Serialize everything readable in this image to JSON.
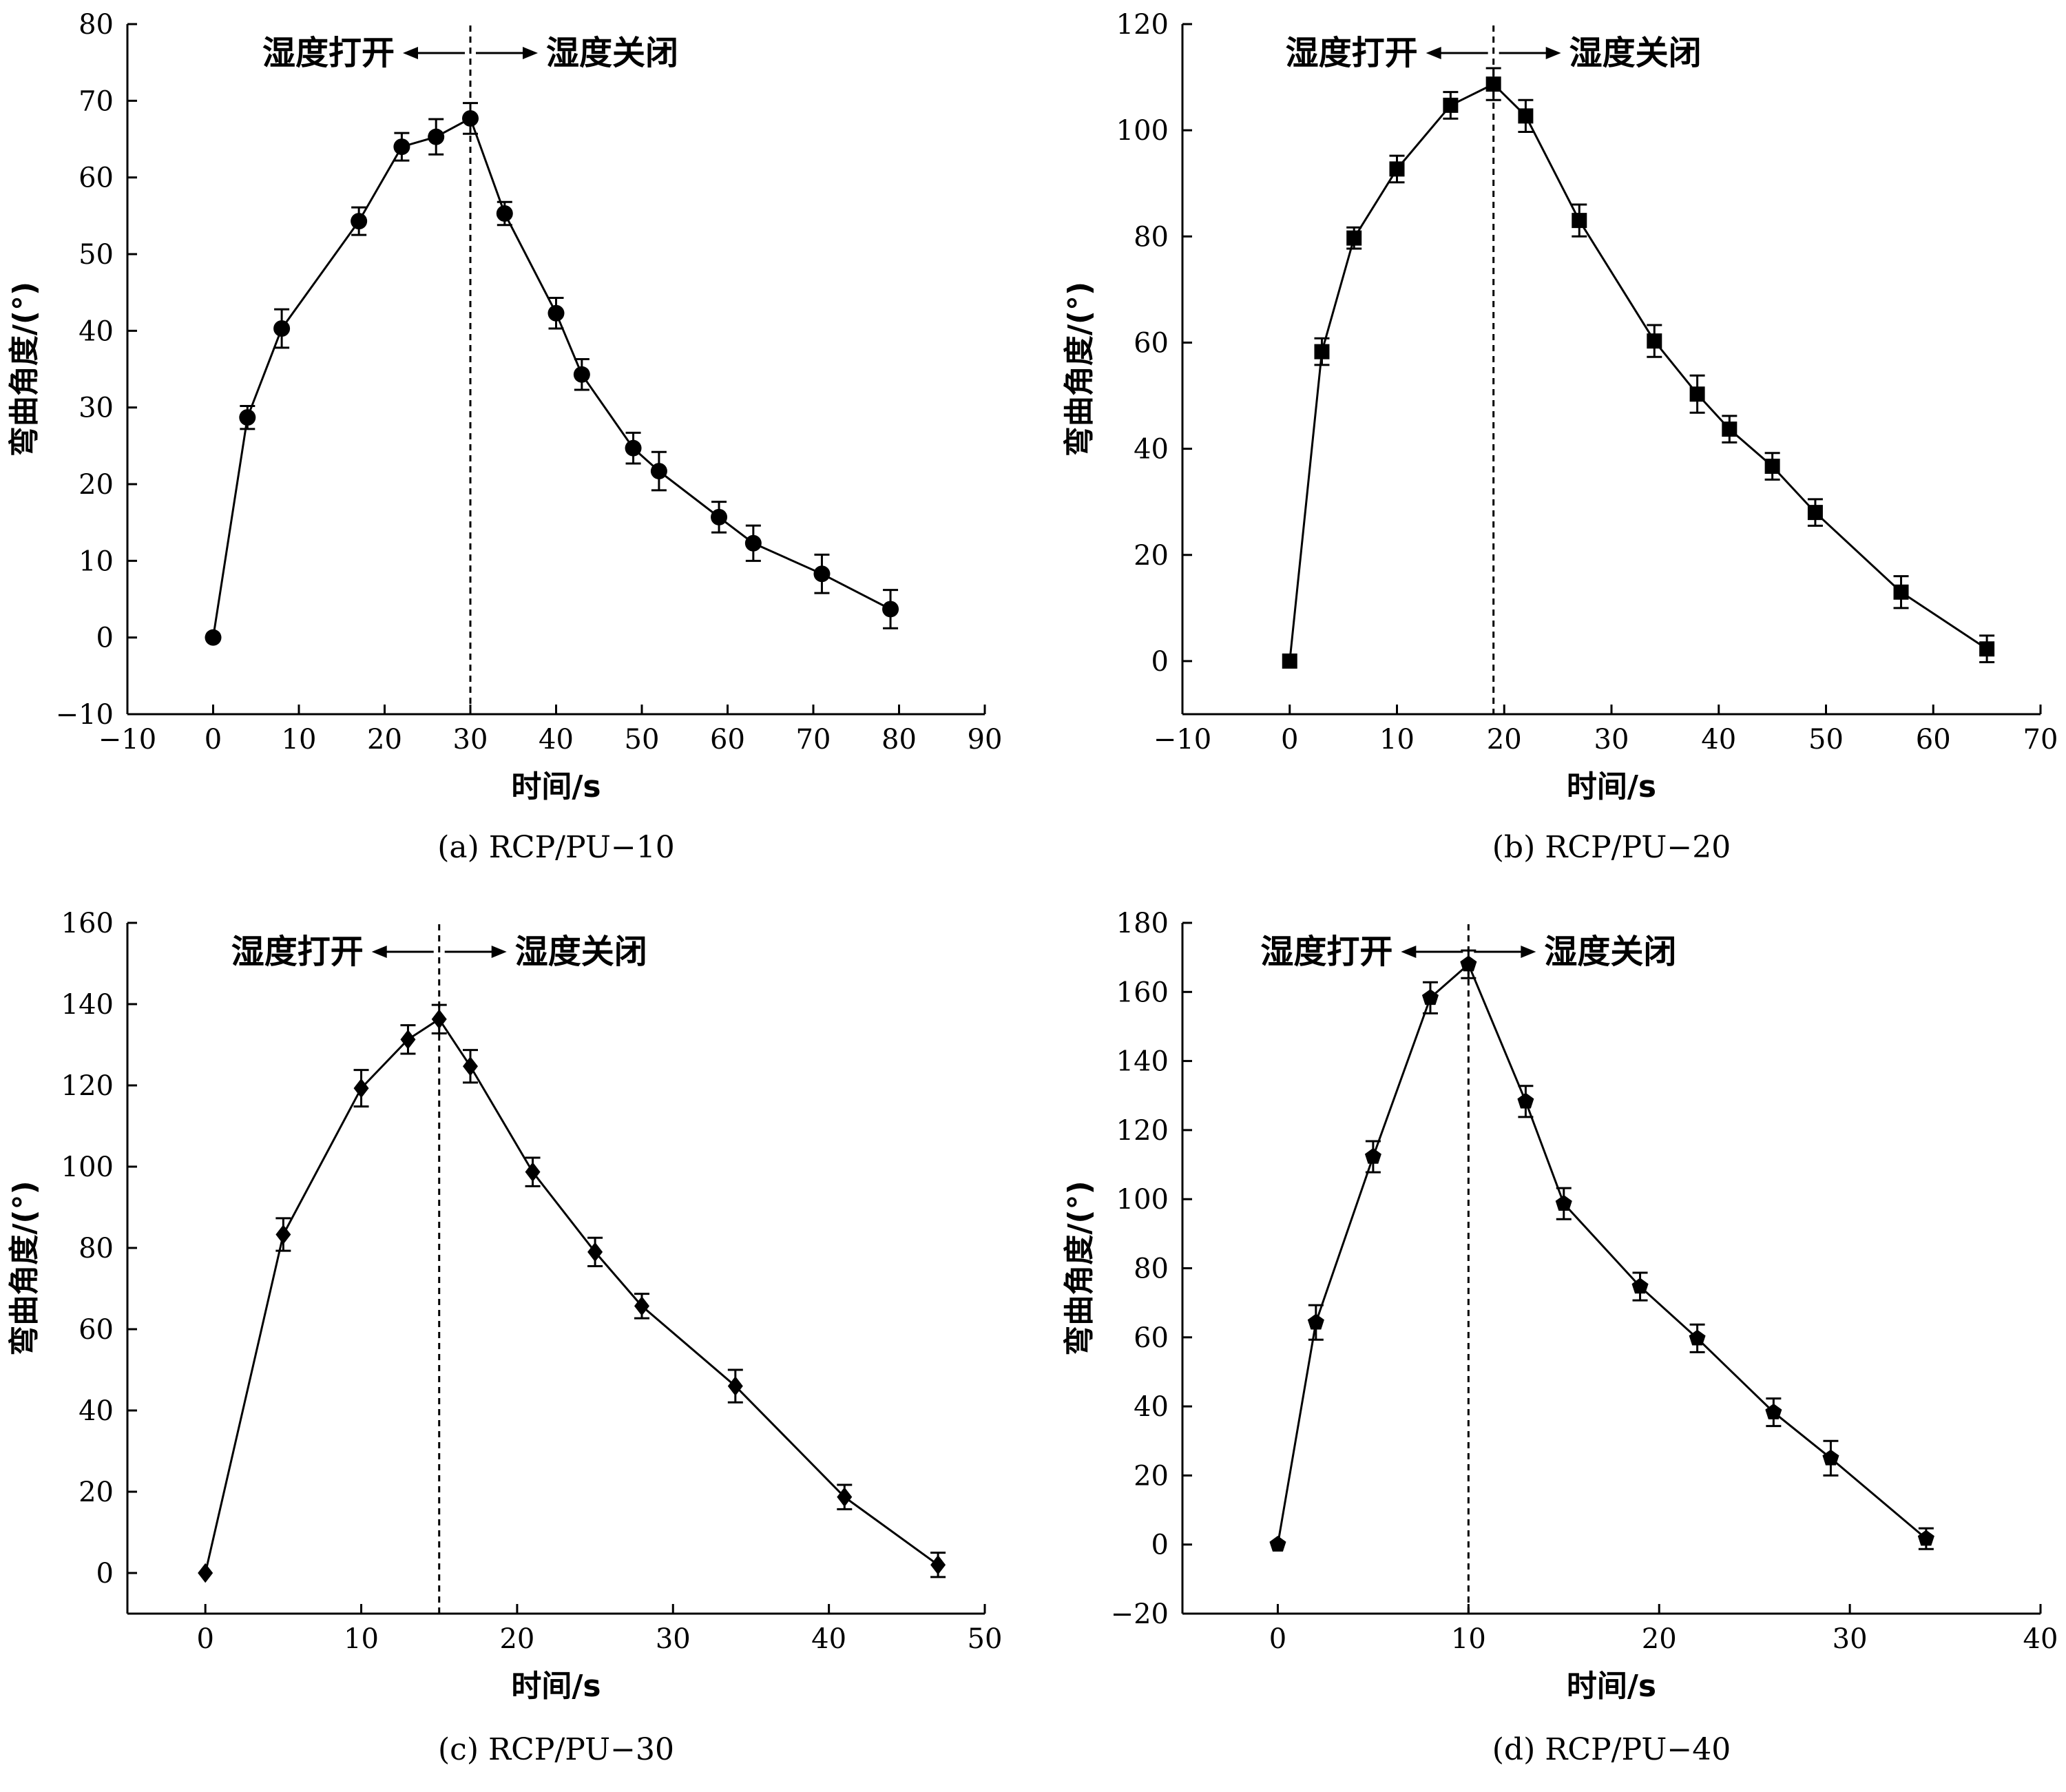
{
  "figure": {
    "background": "#ffffff",
    "ink": "#000000"
  },
  "chart_data": [
    {
      "panel": "a",
      "type": "line",
      "caption": "(a)  RCP/PU−10",
      "xlabel": "时间/s",
      "ylabel": "弯曲角度/(°)",
      "xlim": [
        -10,
        90
      ],
      "ylim": [
        -10,
        80
      ],
      "xticks": [
        -10,
        0,
        10,
        20,
        30,
        40,
        50,
        60,
        70,
        80,
        90
      ],
      "yticks": [
        -10,
        0,
        10,
        20,
        30,
        40,
        50,
        60,
        70,
        80
      ],
      "marker": "circle",
      "switch_x": 30,
      "left_annotation": "湿度打开",
      "right_annotation": "湿度关闭",
      "series": [
        {
          "x": [
            0,
            4,
            8,
            17,
            22,
            26,
            30,
            34,
            40,
            43,
            49,
            52,
            59,
            63,
            71,
            79
          ],
          "y": [
            0,
            28.7,
            40.3,
            54.3,
            64.0,
            65.3,
            67.7,
            55.3,
            42.3,
            34.3,
            24.7,
            21.7,
            15.7,
            12.3,
            8.3,
            3.7
          ],
          "err": [
            0,
            1.5,
            2.5,
            1.8,
            1.8,
            2.3,
            2.0,
            1.5,
            2.0,
            2.0,
            2.0,
            2.5,
            2.0,
            2.3,
            2.5,
            2.5
          ]
        }
      ]
    },
    {
      "panel": "b",
      "type": "line",
      "caption": "(b)  RCP/PU−20",
      "xlabel": "时间/s",
      "ylabel": "弯曲角度/(°)",
      "xlim": [
        -10,
        70
      ],
      "ylim": [
        -10,
        120
      ],
      "xticks": [
        -10,
        0,
        10,
        20,
        30,
        40,
        50,
        60,
        70
      ],
      "yticks": [
        0,
        20,
        40,
        60,
        80,
        100,
        120
      ],
      "marker": "square",
      "switch_x": 19,
      "left_annotation": "湿度打开",
      "right_annotation": "湿度关闭",
      "series": [
        {
          "x": [
            0,
            3,
            6,
            10,
            15,
            19,
            22,
            27,
            34,
            38,
            41,
            45,
            49,
            57,
            65
          ],
          "y": [
            0,
            58.3,
            79.7,
            92.7,
            104.7,
            108.7,
            102.7,
            83.0,
            60.3,
            50.3,
            43.7,
            36.7,
            28.0,
            13.0,
            2.3
          ],
          "err": [
            0,
            2.5,
            2.0,
            2.5,
            2.5,
            3.0,
            3.0,
            3.0,
            3.0,
            3.5,
            2.5,
            2.5,
            2.5,
            3.0,
            2.5
          ]
        }
      ]
    },
    {
      "panel": "c",
      "type": "line",
      "caption": "(c)  RCP/PU−30",
      "xlabel": "时间/s",
      "ylabel": "弯曲角度/(°)",
      "xlim": [
        -5,
        50
      ],
      "ylim": [
        -10,
        160
      ],
      "xticks": [
        0,
        10,
        20,
        30,
        40,
        50
      ],
      "yticks": [
        0,
        20,
        40,
        60,
        80,
        100,
        120,
        140,
        160
      ],
      "marker": "diamond",
      "switch_x": 15,
      "left_annotation": "湿度打开",
      "right_annotation": "湿度关闭",
      "series": [
        {
          "x": [
            0,
            5,
            10,
            13,
            15,
            17,
            21,
            25,
            28,
            34,
            41,
            47
          ],
          "y": [
            0,
            83.3,
            119.3,
            131.3,
            136.3,
            124.7,
            98.7,
            79.0,
            65.7,
            46.0,
            18.7,
            2.0
          ],
          "err": [
            0,
            4.0,
            4.5,
            3.5,
            3.5,
            4.0,
            3.5,
            3.5,
            3.0,
            4.0,
            3.0,
            3.0
          ]
        }
      ]
    },
    {
      "panel": "d",
      "type": "line",
      "caption": "(d)  RCP/PU−40",
      "xlabel": "时间/s",
      "ylabel": "弯曲角度/(°)",
      "xlim": [
        -5,
        40
      ],
      "ylim": [
        -20,
        180
      ],
      "xticks": [
        0,
        10,
        20,
        30,
        40
      ],
      "yticks": [
        -20,
        0,
        20,
        40,
        60,
        80,
        100,
        120,
        140,
        160,
        180
      ],
      "marker": "pentagon",
      "switch_x": 10,
      "left_annotation": "湿度打开",
      "right_annotation": "湿度关闭",
      "series": [
        {
          "x": [
            0,
            2,
            5,
            8,
            10,
            13,
            15,
            19,
            22,
            26,
            29,
            34
          ],
          "y": [
            0,
            64.3,
            112.3,
            158.3,
            168.0,
            128.3,
            98.7,
            74.7,
            59.7,
            38.3,
            25.0,
            1.7
          ],
          "err": [
            0,
            5.0,
            4.5,
            4.5,
            4.0,
            4.5,
            4.5,
            4.0,
            4.0,
            4.0,
            5.0,
            3.0
          ]
        }
      ]
    }
  ]
}
